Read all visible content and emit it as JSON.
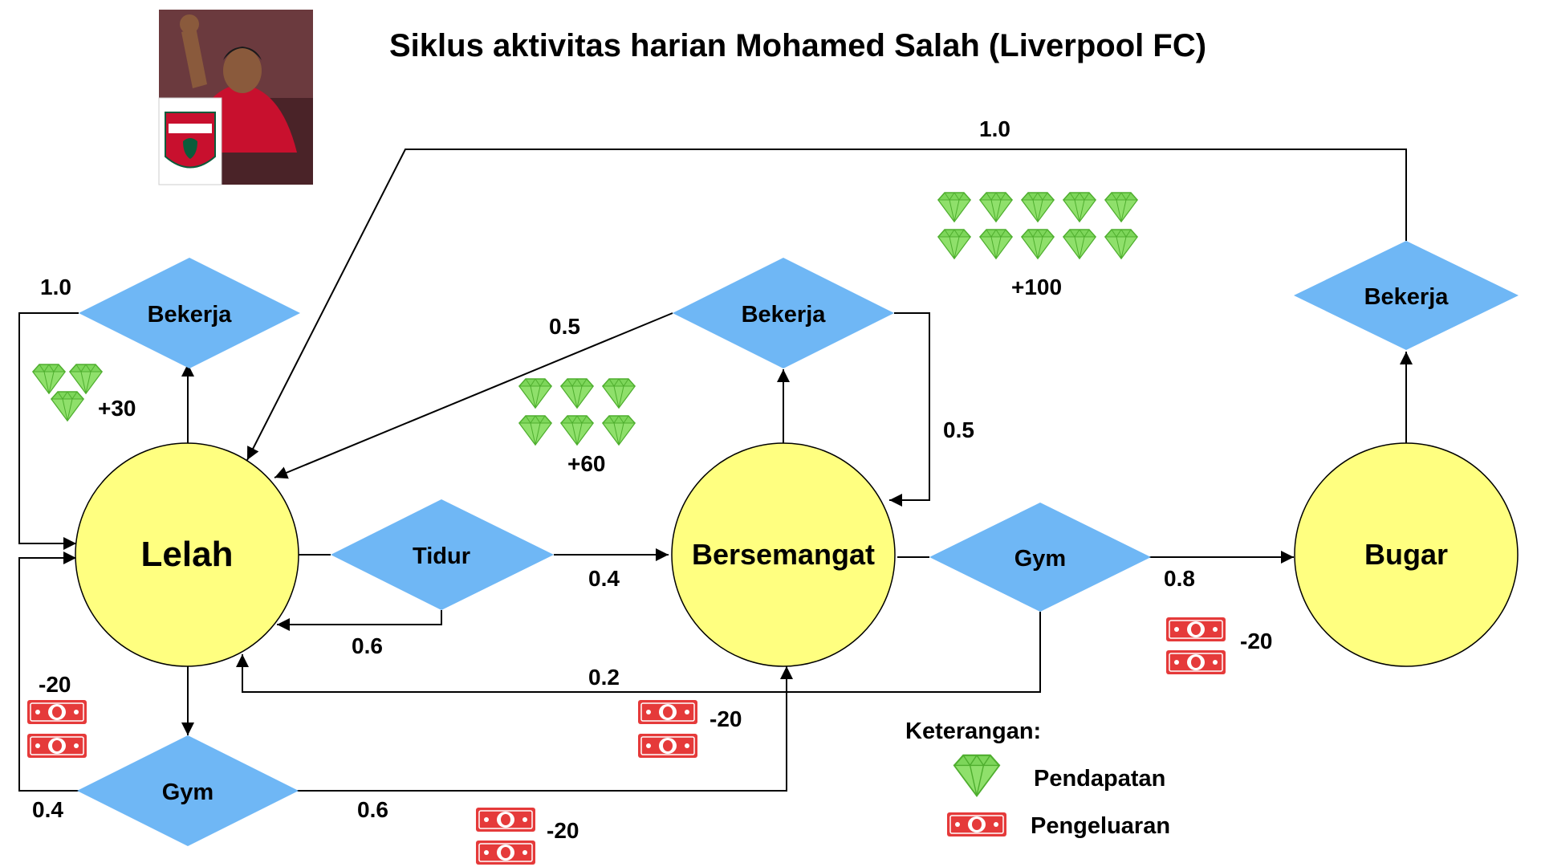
{
  "title": "Siklus aktivitas harian Mohamed Salah (Liverpool FC)",
  "photo": {
    "icon": "player-photo-with-club-crest"
  },
  "colors": {
    "state_fill": "#ffff80",
    "action_fill": "#6fb7f5",
    "gem": "#7dd65a",
    "money": "#e53a3a"
  },
  "states": {
    "lelah": "Lelah",
    "bersemangat": "Bersemangat",
    "bugar": "Bugar"
  },
  "actions": {
    "bekerja_lelah": "Bekerja",
    "gym_lelah": "Gym",
    "tidur": "Tidur",
    "bekerja_bersemangat": "Bekerja",
    "gym_bersemangat": "Gym",
    "bekerja_bugar": "Bekerja"
  },
  "probabilities": {
    "bekerja_lelah_loop": "1.0",
    "tidur_to_bersemangat": "0.4",
    "tidur_to_lelah": "0.6",
    "gym_lelah_to_lelah": "0.4",
    "gym_lelah_to_bersemangat": "0.6",
    "bekerja_bersemangat_to_lelah": "0.5",
    "bekerja_bersemangat_to_bersemangat": "0.5",
    "gym_bersemangat_to_bugar": "0.8",
    "gym_bersemangat_to_lelah": "0.2",
    "bekerja_bugar_to_lelah": "1.0"
  },
  "rewards": {
    "bekerja_lelah": "+30",
    "bekerja_bersemangat": "+60",
    "bekerja_bugar": "+100",
    "gym_lelah": "-20",
    "gym_lelah_cost2": "-20",
    "gym_bersemangat": "-20",
    "gym_bersemangat_bugar": "-20"
  },
  "legend": {
    "title": "Keterangan:",
    "income_label": "Pendapatan",
    "income_icon": "gem-icon",
    "expense_label": "Pengeluaran",
    "expense_icon": "banknote-icon"
  }
}
